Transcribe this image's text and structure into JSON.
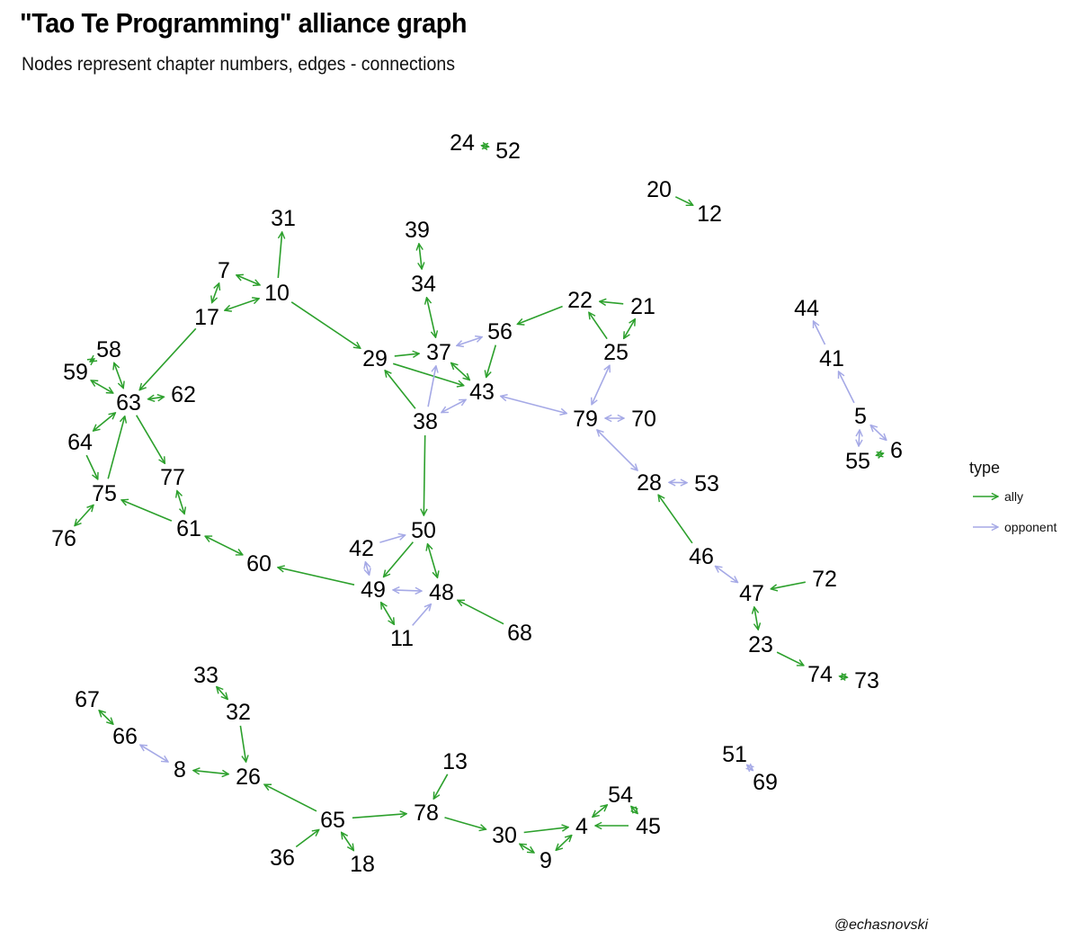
{
  "title": "\"Tao Te Programming\" alliance graph",
  "subtitle": "Nodes represent chapter numbers, edges - connections",
  "caption": "@echasnovski",
  "colors": {
    "ally": "#2ca02c",
    "opponent": "#a5a9e6"
  },
  "legend": {
    "title": "type",
    "items": [
      {
        "key": "ally",
        "label": "ally"
      },
      {
        "key": "opponent",
        "label": "opponent"
      }
    ]
  },
  "nodes": [
    "24",
    "52",
    "20",
    "12",
    "31",
    "39",
    "34",
    "7",
    "10",
    "22",
    "21",
    "17",
    "56",
    "44",
    "58",
    "29",
    "37",
    "25",
    "59",
    "41",
    "63",
    "62",
    "43",
    "38",
    "79",
    "70",
    "5",
    "64",
    "6",
    "55",
    "77",
    "28",
    "53",
    "75",
    "61",
    "50",
    "76",
    "42",
    "46",
    "72",
    "60",
    "47",
    "49",
    "48",
    "11",
    "68",
    "23",
    "74",
    "73",
    "33",
    "67",
    "32",
    "66",
    "13",
    "51",
    "8",
    "26",
    "54",
    "69",
    "65",
    "78",
    "45",
    "4",
    "30",
    "36",
    "18",
    "9"
  ],
  "edges": [
    {
      "from": "24",
      "to": "52",
      "type": "ally",
      "dir": "both"
    },
    {
      "from": "20",
      "to": "12",
      "type": "ally",
      "dir": "to"
    },
    {
      "from": "10",
      "to": "31",
      "type": "ally",
      "dir": "to"
    },
    {
      "from": "39",
      "to": "34",
      "type": "ally",
      "dir": "both"
    },
    {
      "from": "7",
      "to": "10",
      "type": "ally",
      "dir": "both"
    },
    {
      "from": "7",
      "to": "17",
      "type": "ally",
      "dir": "both"
    },
    {
      "from": "17",
      "to": "10",
      "type": "ally",
      "dir": "both"
    },
    {
      "from": "10",
      "to": "29",
      "type": "ally",
      "dir": "to"
    },
    {
      "from": "17",
      "to": "63",
      "type": "ally",
      "dir": "to"
    },
    {
      "from": "34",
      "to": "37",
      "type": "ally",
      "dir": "both"
    },
    {
      "from": "21",
      "to": "22",
      "type": "ally",
      "dir": "to"
    },
    {
      "from": "21",
      "to": "25",
      "type": "ally",
      "dir": "both"
    },
    {
      "from": "25",
      "to": "22",
      "type": "ally",
      "dir": "to"
    },
    {
      "from": "22",
      "to": "56",
      "type": "ally",
      "dir": "to"
    },
    {
      "from": "56",
      "to": "37",
      "type": "opponent",
      "dir": "both"
    },
    {
      "from": "56",
      "to": "43",
      "type": "ally",
      "dir": "to"
    },
    {
      "from": "29",
      "to": "37",
      "type": "ally",
      "dir": "to"
    },
    {
      "from": "29",
      "to": "43",
      "type": "ally",
      "dir": "to"
    },
    {
      "from": "37",
      "to": "43",
      "type": "ally",
      "dir": "both"
    },
    {
      "from": "38",
      "to": "29",
      "type": "ally",
      "dir": "to"
    },
    {
      "from": "38",
      "to": "37",
      "type": "opponent",
      "dir": "to"
    },
    {
      "from": "43",
      "to": "38",
      "type": "opponent",
      "dir": "both"
    },
    {
      "from": "43",
      "to": "79",
      "type": "opponent",
      "dir": "both"
    },
    {
      "from": "25",
      "to": "79",
      "type": "opponent",
      "dir": "both"
    },
    {
      "from": "79",
      "to": "70",
      "type": "opponent",
      "dir": "both"
    },
    {
      "from": "79",
      "to": "28",
      "type": "opponent",
      "dir": "both"
    },
    {
      "from": "28",
      "to": "53",
      "type": "opponent",
      "dir": "both"
    },
    {
      "from": "46",
      "to": "28",
      "type": "ally",
      "dir": "to"
    },
    {
      "from": "46",
      "to": "47",
      "type": "opponent",
      "dir": "both"
    },
    {
      "from": "72",
      "to": "47",
      "type": "ally",
      "dir": "to"
    },
    {
      "from": "47",
      "to": "23",
      "type": "ally",
      "dir": "both"
    },
    {
      "from": "23",
      "to": "74",
      "type": "ally",
      "dir": "to"
    },
    {
      "from": "74",
      "to": "73",
      "type": "ally",
      "dir": "both"
    },
    {
      "from": "41",
      "to": "44",
      "type": "opponent",
      "dir": "to"
    },
    {
      "from": "5",
      "to": "41",
      "type": "opponent",
      "dir": "to"
    },
    {
      "from": "5",
      "to": "55",
      "type": "opponent",
      "dir": "both"
    },
    {
      "from": "5",
      "to": "6",
      "type": "opponent",
      "dir": "both"
    },
    {
      "from": "55",
      "to": "6",
      "type": "ally",
      "dir": "both"
    },
    {
      "from": "58",
      "to": "59",
      "type": "ally",
      "dir": "both"
    },
    {
      "from": "58",
      "to": "63",
      "type": "ally",
      "dir": "both"
    },
    {
      "from": "59",
      "to": "63",
      "type": "ally",
      "dir": "both"
    },
    {
      "from": "63",
      "to": "62",
      "type": "ally",
      "dir": "both"
    },
    {
      "from": "64",
      "to": "63",
      "type": "ally",
      "dir": "both"
    },
    {
      "from": "64",
      "to": "75",
      "type": "ally",
      "dir": "to"
    },
    {
      "from": "75",
      "to": "63",
      "type": "ally",
      "dir": "to"
    },
    {
      "from": "63",
      "to": "77",
      "type": "ally",
      "dir": "to"
    },
    {
      "from": "77",
      "to": "61",
      "type": "ally",
      "dir": "both"
    },
    {
      "from": "61",
      "to": "75",
      "type": "ally",
      "dir": "to"
    },
    {
      "from": "75",
      "to": "76",
      "type": "ally",
      "dir": "both"
    },
    {
      "from": "61",
      "to": "60",
      "type": "ally",
      "dir": "both"
    },
    {
      "from": "49",
      "to": "60",
      "type": "ally",
      "dir": "to"
    },
    {
      "from": "38",
      "to": "50",
      "type": "ally",
      "dir": "to"
    },
    {
      "from": "42",
      "to": "50",
      "type": "opponent",
      "dir": "to"
    },
    {
      "from": "42",
      "to": "49",
      "type": "opponent",
      "dir": "both"
    },
    {
      "from": "50",
      "to": "49",
      "type": "ally",
      "dir": "to"
    },
    {
      "from": "50",
      "to": "48",
      "type": "ally",
      "dir": "both"
    },
    {
      "from": "49",
      "to": "48",
      "type": "opponent",
      "dir": "both"
    },
    {
      "from": "49",
      "to": "11",
      "type": "ally",
      "dir": "both"
    },
    {
      "from": "11",
      "to": "48",
      "type": "opponent",
      "dir": "to"
    },
    {
      "from": "68",
      "to": "48",
      "type": "ally",
      "dir": "to"
    },
    {
      "from": "33",
      "to": "32",
      "type": "ally",
      "dir": "both"
    },
    {
      "from": "32",
      "to": "26",
      "type": "ally",
      "dir": "to"
    },
    {
      "from": "67",
      "to": "66",
      "type": "ally",
      "dir": "both"
    },
    {
      "from": "66",
      "to": "8",
      "type": "opponent",
      "dir": "both"
    },
    {
      "from": "8",
      "to": "26",
      "type": "ally",
      "dir": "both"
    },
    {
      "from": "65",
      "to": "26",
      "type": "ally",
      "dir": "to"
    },
    {
      "from": "36",
      "to": "65",
      "type": "ally",
      "dir": "to"
    },
    {
      "from": "65",
      "to": "18",
      "type": "ally",
      "dir": "both"
    },
    {
      "from": "65",
      "to": "78",
      "type": "ally",
      "dir": "to"
    },
    {
      "from": "13",
      "to": "78",
      "type": "ally",
      "dir": "to"
    },
    {
      "from": "78",
      "to": "30",
      "type": "ally",
      "dir": "to"
    },
    {
      "from": "30",
      "to": "4",
      "type": "ally",
      "dir": "to"
    },
    {
      "from": "30",
      "to": "9",
      "type": "ally",
      "dir": "both"
    },
    {
      "from": "9",
      "to": "4",
      "type": "ally",
      "dir": "both"
    },
    {
      "from": "4",
      "to": "54",
      "type": "ally",
      "dir": "both"
    },
    {
      "from": "45",
      "to": "4",
      "type": "ally",
      "dir": "to"
    },
    {
      "from": "54",
      "to": "45",
      "type": "ally",
      "dir": "both"
    },
    {
      "from": "51",
      "to": "69",
      "type": "opponent",
      "dir": "both"
    }
  ]
}
